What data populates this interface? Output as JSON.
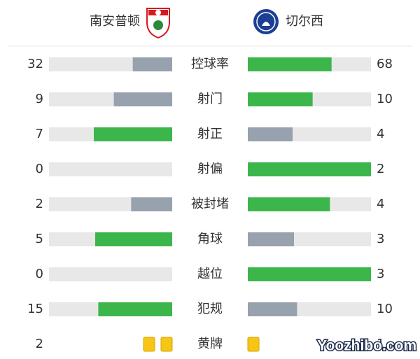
{
  "header": {
    "home": "南安普顿",
    "away": "切尔西"
  },
  "colors": {
    "leading": "#3cb64b",
    "trailing": "#98a1ae",
    "card": "#f6c516"
  },
  "stats": [
    {
      "label": "控球率",
      "home": 32,
      "away": 68
    },
    {
      "label": "射门",
      "home": 9,
      "away": 10
    },
    {
      "label": "射正",
      "home": 7,
      "away": 4
    },
    {
      "label": "射偏",
      "home": 0,
      "away": 2
    },
    {
      "label": "被封堵",
      "home": 2,
      "away": 4
    },
    {
      "label": "角球",
      "home": 5,
      "away": 3
    },
    {
      "label": "越位",
      "home": 0,
      "away": 3
    },
    {
      "label": "犯规",
      "home": 15,
      "away": 10
    },
    {
      "label": "黄牌",
      "home": 2,
      "away": 1,
      "display": "cards"
    }
  ],
  "watermark": "Yoozhibo.com"
}
